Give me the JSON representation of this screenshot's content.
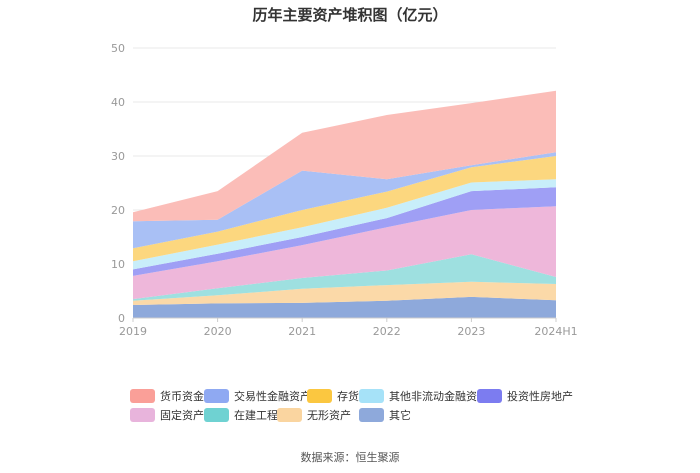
{
  "chart_data": {
    "type": "area",
    "stacked": true,
    "title": "历年主要资产堆积图（亿元）",
    "x": [
      "2019",
      "2020",
      "2021",
      "2022",
      "2023",
      "2024H1"
    ],
    "ylim": [
      0,
      50
    ],
    "yticks": [
      0,
      10,
      20,
      30,
      40,
      50
    ],
    "grid": true,
    "legend_position": "bottom",
    "series": [
      {
        "name": "其它",
        "color": "#8ea9db",
        "values": [
          2.4,
          2.7,
          2.8,
          3.2,
          3.9,
          3.3
        ]
      },
      {
        "name": "无形资产",
        "color": "#fbd9a8",
        "values": [
          0.8,
          1.5,
          2.6,
          2.9,
          2.8,
          3.0
        ]
      },
      {
        "name": "在建工程",
        "color": "#9ee0e0",
        "values": [
          0.3,
          1.3,
          2.0,
          2.7,
          5.1,
          1.3
        ]
      },
      {
        "name": "固定资产",
        "color": "#eeb7da",
        "values": [
          4.3,
          5.0,
          6.1,
          8.0,
          8.2,
          13.1
        ]
      },
      {
        "name": "投资性房地产",
        "color": "#9f9ff5",
        "values": [
          1.2,
          1.4,
          1.5,
          1.7,
          3.5,
          3.5
        ]
      },
      {
        "name": "其他非流动金融资产",
        "color": "#c8eefa",
        "values": [
          1.5,
          1.7,
          1.8,
          1.9,
          1.6,
          1.5
        ]
      },
      {
        "name": "存货",
        "color": "#fcd77f",
        "values": [
          2.4,
          2.4,
          3.2,
          3.0,
          2.8,
          4.3
        ]
      },
      {
        "name": "交易性金融资产",
        "color": "#a9c0f5",
        "values": [
          5.0,
          2.2,
          7.3,
          2.3,
          0.4,
          0.7
        ]
      },
      {
        "name": "货币资金",
        "color": "#fbbdb8",
        "values": [
          1.7,
          5.3,
          7.0,
          11.9,
          11.5,
          11.4
        ]
      }
    ],
    "source": "数据来源：恒生聚源"
  },
  "legend": [
    {
      "name": "货币资金",
      "color": "#fa9f98"
    },
    {
      "name": "交易性金融资产",
      "color": "#8fa9f2"
    },
    {
      "name": "存货",
      "color": "#fbc740"
    },
    {
      "name": "其他非流动金融资产",
      "color": "#a6e2f8"
    },
    {
      "name": "投资性房地产",
      "color": "#7c7cf0"
    },
    {
      "name": "固定资产",
      "color": "#e8b4dc"
    },
    {
      "name": "在建工程",
      "color": "#6fd2d2"
    },
    {
      "name": "无形资产",
      "color": "#fad5a0"
    },
    {
      "name": "其它",
      "color": "#8ea9db"
    }
  ]
}
